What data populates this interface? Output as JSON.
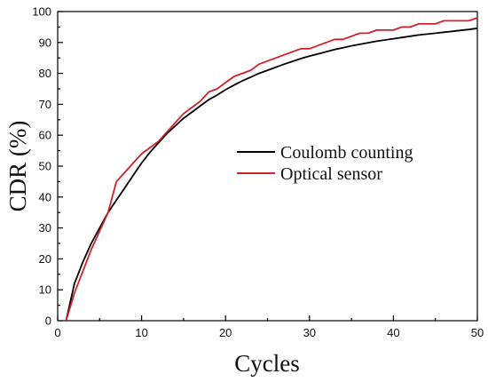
{
  "chart_data": {
    "type": "line",
    "title": "",
    "xlabel": "Cycles",
    "ylabel": "CDR (%)",
    "xlim": [
      0,
      50
    ],
    "ylim": [
      0,
      100
    ],
    "x_ticks": [
      0,
      10,
      20,
      30,
      40,
      50
    ],
    "y_ticks": [
      0,
      10,
      20,
      30,
      40,
      50,
      60,
      70,
      80,
      90,
      100
    ],
    "grid": false,
    "legend": "center-right",
    "series": [
      {
        "name": "Coulomb counting",
        "color": "#000000",
        "x": [
          1,
          2,
          3,
          4,
          5,
          6,
          7,
          8,
          9,
          10,
          11,
          12,
          13,
          14,
          15,
          16,
          17,
          18,
          19,
          20,
          21,
          22,
          23,
          24,
          25,
          26,
          27,
          28,
          29,
          30,
          31,
          32,
          33,
          34,
          35,
          36,
          37,
          38,
          39,
          40,
          41,
          42,
          43,
          44,
          45,
          46,
          47,
          48,
          49,
          50
        ],
        "y": [
          0,
          12,
          19,
          25,
          30,
          35,
          39,
          43,
          47,
          51,
          54.5,
          57.5,
          60.5,
          63,
          65.5,
          67.5,
          69.5,
          71.5,
          73,
          74.7,
          76.2,
          77.6,
          78.8,
          80,
          81,
          82,
          83,
          83.9,
          84.8,
          85.6,
          86.3,
          87,
          87.7,
          88.3,
          88.9,
          89.4,
          89.9,
          90.4,
          90.8,
          91.2,
          91.6,
          92,
          92.4,
          92.7,
          93,
          93.3,
          93.6,
          93.9,
          94.2,
          94.6
        ]
      },
      {
        "name": "Optical sensor",
        "color": "#d3202a",
        "x": [
          1,
          2,
          3,
          4,
          5,
          6,
          7,
          8,
          9,
          10,
          11,
          12,
          13,
          14,
          15,
          16,
          17,
          18,
          19,
          20,
          21,
          22,
          23,
          24,
          25,
          26,
          27,
          28,
          29,
          30,
          31,
          32,
          33,
          34,
          35,
          36,
          37,
          38,
          39,
          40,
          41,
          42,
          43,
          44,
          45,
          46,
          47,
          48,
          49,
          50
        ],
        "y": [
          0,
          9,
          16,
          23,
          29,
          35,
          45,
          48,
          51,
          54,
          56,
          58,
          61,
          64,
          67,
          69,
          71,
          74,
          75,
          77,
          79,
          80,
          81,
          83,
          84,
          85,
          86,
          87,
          88,
          88,
          89,
          90,
          91,
          91,
          92,
          93,
          93,
          94,
          94,
          94,
          95,
          95,
          96,
          96,
          96,
          97,
          97,
          97,
          97,
          98
        ]
      }
    ]
  }
}
